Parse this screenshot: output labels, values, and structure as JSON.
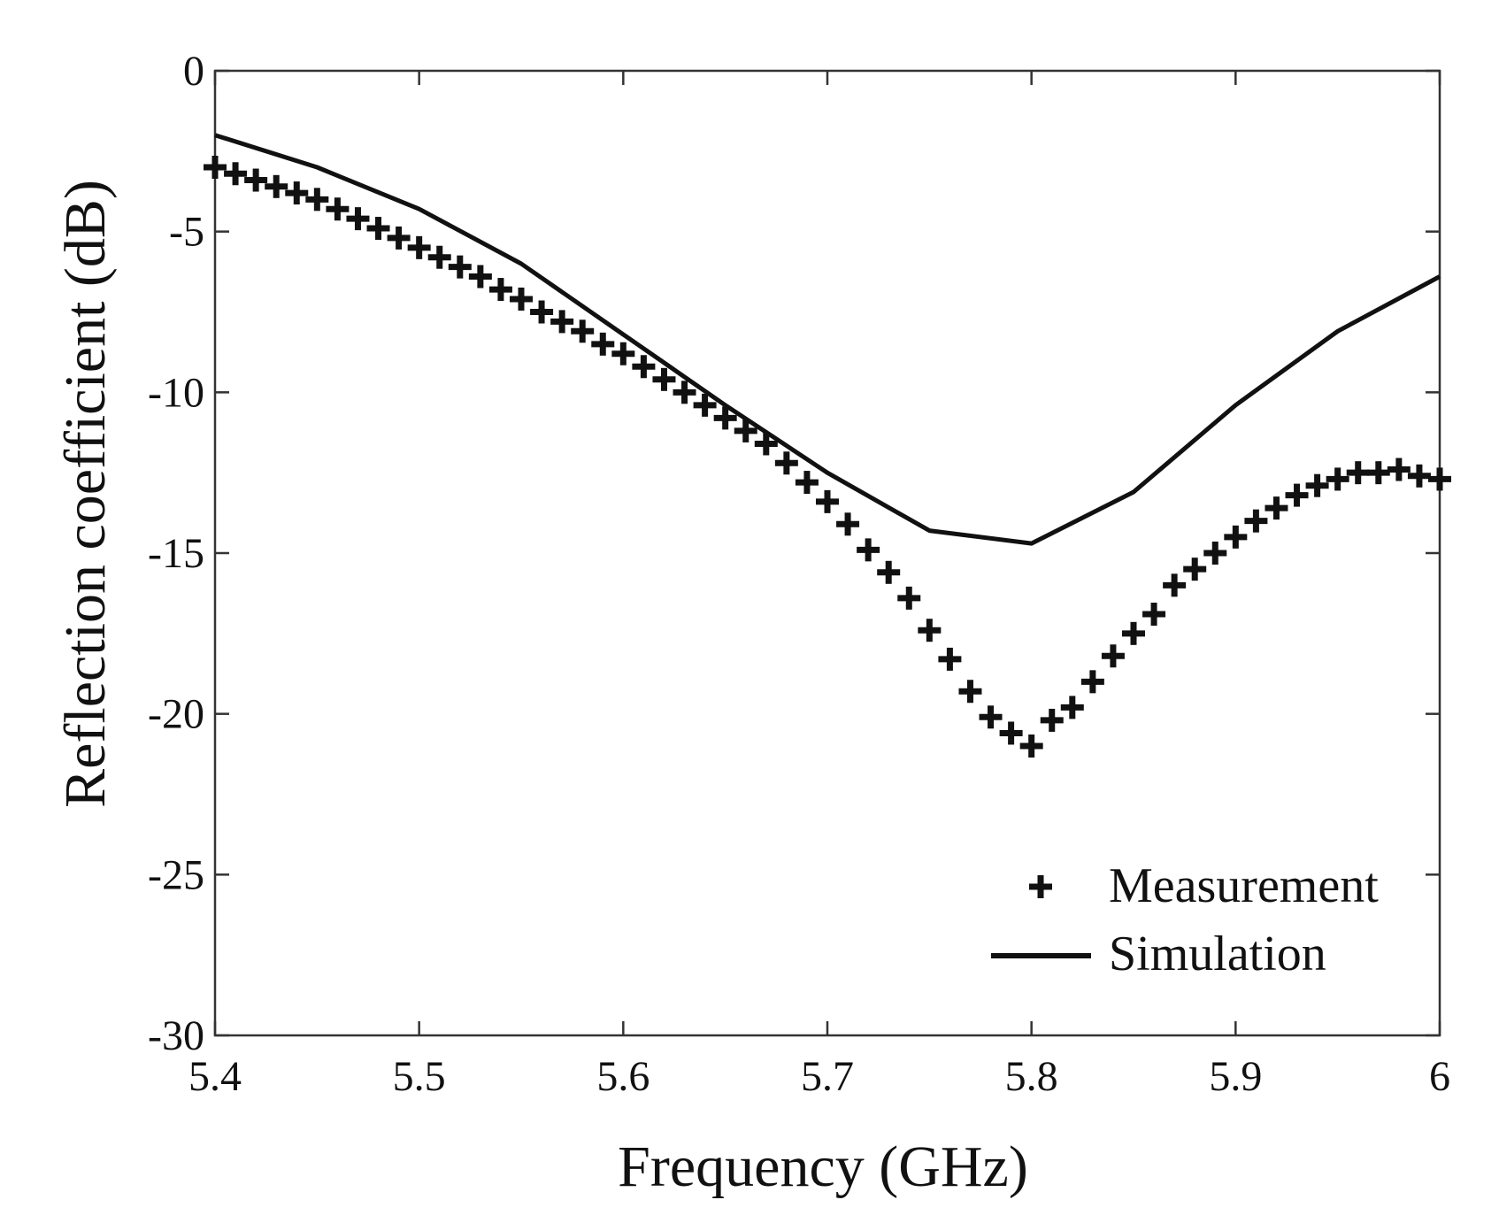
{
  "chart_data": {
    "type": "line",
    "title": "",
    "xlabel": "Frequency (GHz)",
    "ylabel": "Reflection coefficient (dB)",
    "xlim": [
      5.4,
      6.0
    ],
    "ylim": [
      -30,
      0
    ],
    "xticks": [
      {
        "value": 5.4,
        "label": "5.4"
      },
      {
        "value": 5.5,
        "label": "5.5"
      },
      {
        "value": 5.6,
        "label": "5.6"
      },
      {
        "value": 5.7,
        "label": "5.7"
      },
      {
        "value": 5.8,
        "label": "5.8"
      },
      {
        "value": 5.9,
        "label": "5.9"
      },
      {
        "value": 6.0,
        "label": "6"
      }
    ],
    "yticks": [
      {
        "value": 0,
        "label": "0"
      },
      {
        "value": -5,
        "label": "-5"
      },
      {
        "value": -10,
        "label": "-10"
      },
      {
        "value": -15,
        "label": "-15"
      },
      {
        "value": -20,
        "label": "-20"
      },
      {
        "value": -25,
        "label": "-25"
      },
      {
        "value": -30,
        "label": "-30"
      }
    ],
    "grid": false,
    "legend_position": "bottom-right",
    "series": [
      {
        "name": "Measurement",
        "style": "plus-markers",
        "color": "#111111",
        "x": [
          5.4,
          5.41,
          5.42,
          5.43,
          5.44,
          5.45,
          5.46,
          5.47,
          5.48,
          5.49,
          5.5,
          5.51,
          5.52,
          5.53,
          5.54,
          5.55,
          5.56,
          5.57,
          5.58,
          5.59,
          5.6,
          5.61,
          5.62,
          5.63,
          5.64,
          5.65,
          5.66,
          5.67,
          5.68,
          5.69,
          5.7,
          5.71,
          5.72,
          5.73,
          5.74,
          5.75,
          5.76,
          5.77,
          5.78,
          5.79,
          5.8,
          5.81,
          5.82,
          5.83,
          5.84,
          5.85,
          5.86,
          5.87,
          5.88,
          5.89,
          5.9,
          5.91,
          5.92,
          5.93,
          5.94,
          5.95,
          5.96,
          5.97,
          5.98,
          5.99,
          6.0
        ],
        "y": [
          -3.0,
          -3.2,
          -3.4,
          -3.6,
          -3.8,
          -4.0,
          -4.3,
          -4.6,
          -4.9,
          -5.2,
          -5.5,
          -5.8,
          -6.1,
          -6.4,
          -6.8,
          -7.1,
          -7.5,
          -7.8,
          -8.1,
          -8.5,
          -8.8,
          -9.2,
          -9.6,
          -10.0,
          -10.4,
          -10.8,
          -11.2,
          -11.6,
          -12.2,
          -12.8,
          -13.4,
          -14.1,
          -14.9,
          -15.6,
          -16.4,
          -17.4,
          -18.3,
          -19.3,
          -20.1,
          -20.6,
          -21.0,
          -20.2,
          -19.8,
          -19.0,
          -18.2,
          -17.5,
          -16.9,
          -16.0,
          -15.5,
          -15.0,
          -14.5,
          -14.0,
          -13.6,
          -13.2,
          -12.9,
          -12.7,
          -12.5,
          -12.5,
          -12.4,
          -12.6,
          -12.7
        ]
      },
      {
        "name": "Simulation",
        "style": "solid-line",
        "color": "#111111",
        "x": [
          5.4,
          5.45,
          5.5,
          5.55,
          5.6,
          5.65,
          5.7,
          5.75,
          5.8,
          5.85,
          5.9,
          5.95,
          6.0
        ],
        "y": [
          -2.0,
          -3.0,
          -4.3,
          -6.0,
          -8.2,
          -10.4,
          -12.5,
          -14.3,
          -14.7,
          -13.1,
          -10.4,
          -8.1,
          -6.4
        ]
      }
    ]
  }
}
